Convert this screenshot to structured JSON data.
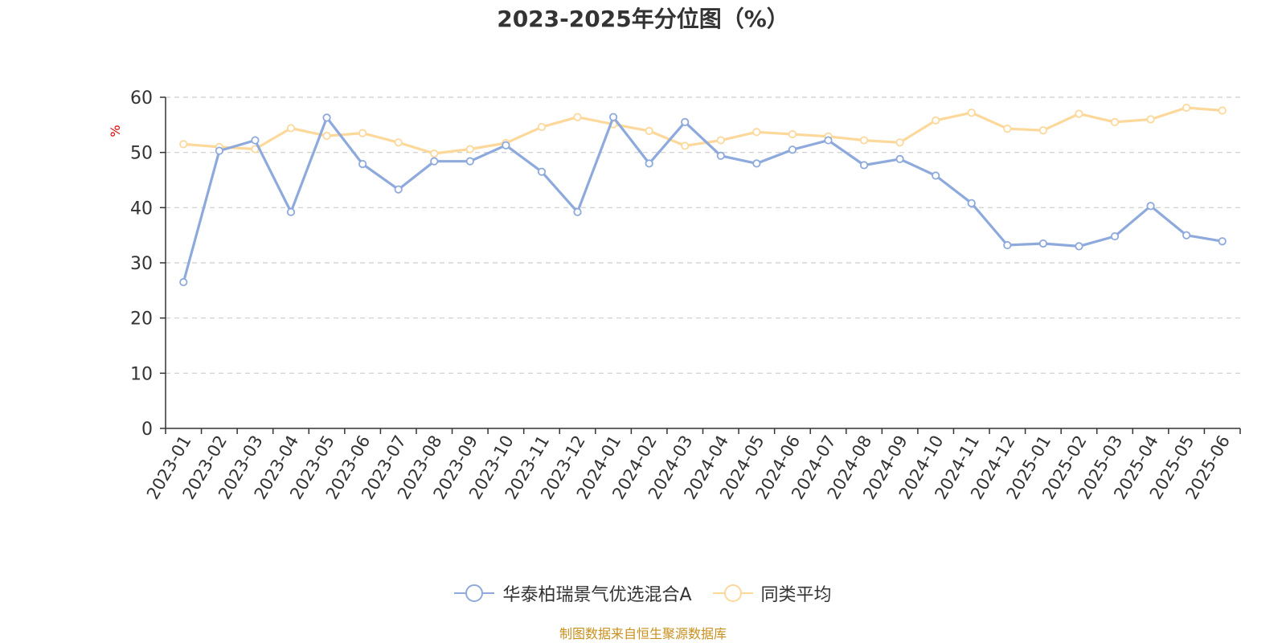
{
  "chart_data": {
    "type": "line",
    "title": "2023-2025年分位图（%）",
    "ylabel": "%",
    "xlabel": "",
    "ylim": [
      0,
      60
    ],
    "yticks": [
      0,
      10,
      20,
      30,
      40,
      50,
      60
    ],
    "grid": true,
    "legend_position": "bottom-center",
    "categories": [
      "2023-01",
      "2023-02",
      "2023-03",
      "2023-04",
      "2023-05",
      "2023-06",
      "2023-07",
      "2023-08",
      "2023-09",
      "2023-10",
      "2023-11",
      "2023-12",
      "2024-01",
      "2024-02",
      "2024-03",
      "2024-04",
      "2024-05",
      "2024-06",
      "2024-07",
      "2024-08",
      "2024-09",
      "2024-10",
      "2024-11",
      "2024-12",
      "2025-01",
      "2025-02",
      "2025-03",
      "2025-04",
      "2025-05",
      "2025-06"
    ],
    "series": [
      {
        "name": "华泰柏瑞景气优选混合A",
        "color": "#8eaadc",
        "values": [
          26.5,
          50.3,
          52.2,
          39.2,
          56.3,
          47.9,
          43.3,
          48.4,
          48.4,
          51.3,
          46.5,
          39.2,
          56.4,
          48.0,
          55.5,
          49.4,
          48.0,
          50.5,
          52.2,
          47.7,
          48.8,
          45.8,
          40.8,
          33.2,
          33.5,
          33.0,
          34.8,
          40.3,
          35.0,
          33.9
        ]
      },
      {
        "name": "同类平均",
        "color": "#fcd89b",
        "values": [
          51.5,
          51.0,
          50.6,
          54.4,
          53.0,
          53.5,
          51.8,
          49.8,
          50.6,
          51.7,
          54.6,
          56.4,
          55.1,
          53.9,
          51.2,
          52.2,
          53.7,
          53.3,
          52.9,
          52.2,
          51.8,
          55.8,
          57.2,
          54.3,
          54.0,
          57.0,
          55.5,
          56.0,
          58.1,
          57.6
        ]
      }
    ]
  },
  "source_note": "制图数据来自恒生聚源数据库"
}
